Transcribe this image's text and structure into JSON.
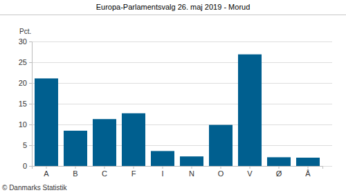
{
  "chart_data": {
    "type": "bar",
    "title": "Europa-Parlamentsvalg 26. maj 2019 - Morud",
    "y_label": "Pct.",
    "categories": [
      "A",
      "B",
      "C",
      "F",
      "I",
      "N",
      "O",
      "V",
      "Ø",
      "Å"
    ],
    "values": [
      21.1,
      8.5,
      11.3,
      12.7,
      3.6,
      2.3,
      9.9,
      26.9,
      2.1,
      2.0
    ],
    "color": "#005f8f",
    "ylim": [
      0,
      30
    ],
    "yticks": [
      0,
      5,
      10,
      15,
      20,
      25,
      30
    ],
    "grid": true,
    "annotations": [
      "© Danmarks Statistik"
    ]
  }
}
